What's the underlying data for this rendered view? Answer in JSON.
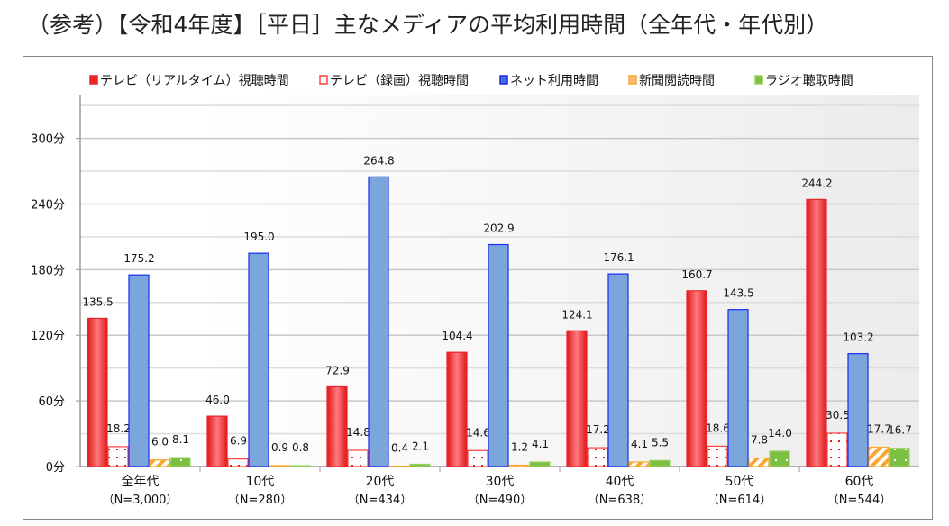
{
  "title": "（参考）【令和4年度】［平日］主なメディアの平均利用時間（全年代・年代別）",
  "chart_data": {
    "type": "bar",
    "title": "（参考）【令和4年度】［平日］主なメディアの平均利用時間（全年代・年代別）",
    "categories": [
      "全年代",
      "10代",
      "20代",
      "30代",
      "40代",
      "50代",
      "60代"
    ],
    "category_sublabels": [
      "（N=3,000）",
      "（N=280）",
      "（N=434）",
      "（N=490）",
      "（N=638）",
      "（N=614）",
      "（N=544）"
    ],
    "series": [
      {
        "name": "テレビ（リアルタイム）視聴時間",
        "color": "#e8262b",
        "values": [
          135.5,
          46.0,
          72.9,
          104.4,
          124.1,
          160.7,
          244.2
        ]
      },
      {
        "name": "テレビ（録画）視聴時間",
        "color": "#ff2020",
        "values": [
          18.2,
          6.9,
          14.8,
          14.6,
          17.2,
          18.6,
          30.5
        ]
      },
      {
        "name": "ネット利用時間",
        "color": "#7aa6dc",
        "values": [
          175.2,
          195.0,
          264.8,
          202.9,
          176.1,
          143.5,
          103.2
        ]
      },
      {
        "name": "新聞閲読時間",
        "color": "#f7a830",
        "values": [
          6.0,
          0.9,
          0.4,
          1.2,
          4.1,
          7.8,
          17.7
        ]
      },
      {
        "name": "ラジオ聴取時間",
        "color": "#7cc043",
        "values": [
          8.1,
          0.8,
          2.1,
          4.1,
          5.5,
          14.0,
          16.7
        ]
      }
    ],
    "yticks": [
      "0分",
      "60分",
      "120分",
      "180分",
      "240分",
      "300分"
    ],
    "ylim": [
      0,
      340
    ],
    "grid": true,
    "legend": "top"
  }
}
